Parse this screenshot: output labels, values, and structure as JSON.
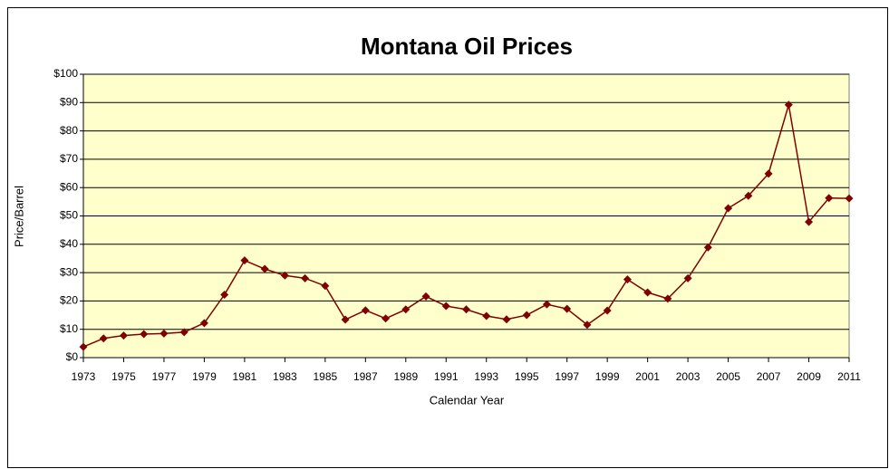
{
  "chart_data": {
    "type": "line",
    "title": "Montana Oil Prices",
    "x_label": "Calendar Year",
    "y_label": "Price/Barrel",
    "x": [
      1973,
      1974,
      1975,
      1976,
      1977,
      1978,
      1979,
      1980,
      1981,
      1982,
      1983,
      1984,
      1985,
      1986,
      1987,
      1988,
      1989,
      1990,
      1991,
      1992,
      1993,
      1994,
      1995,
      1996,
      1997,
      1998,
      1999,
      2000,
      2001,
      2002,
      2003,
      2004,
      2005,
      2006,
      2007,
      2008,
      2009,
      2010,
      2011
    ],
    "series": [
      {
        "name": "Price/Barrel",
        "color": "#800000",
        "values": [
          3.8,
          6.8,
          7.8,
          8.3,
          8.5,
          9.0,
          12.2,
          22.2,
          34.3,
          31.3,
          29.0,
          28.0,
          25.3,
          13.4,
          16.7,
          13.8,
          17.0,
          21.6,
          18.2,
          17.0,
          14.7,
          13.5,
          15.0,
          18.8,
          17.2,
          11.6,
          16.6,
          27.6,
          23.0,
          20.8,
          28.0,
          38.9,
          52.7,
          57.1,
          64.9,
          89.2,
          47.9,
          56.3,
          56.2
        ]
      }
    ],
    "xlim": [
      1973,
      2011
    ],
    "xticks": [
      1973,
      1975,
      1977,
      1979,
      1981,
      1983,
      1985,
      1987,
      1989,
      1991,
      1993,
      1995,
      1997,
      1999,
      2001,
      2003,
      2005,
      2007,
      2009,
      2011
    ],
    "ylim": [
      0,
      100
    ],
    "yticks": [
      {
        "value": 0,
        "label": "$0"
      },
      {
        "value": 10,
        "label": "$10"
      },
      {
        "value": 20,
        "label": "$20"
      },
      {
        "value": 30,
        "label": "$30"
      },
      {
        "value": 40,
        "label": "$40"
      },
      {
        "value": 50,
        "label": "$50"
      },
      {
        "value": 60,
        "label": "$60"
      },
      {
        "value": 70,
        "label": "$70"
      },
      {
        "value": 80,
        "label": "$80"
      },
      {
        "value": 90,
        "label": "$90"
      },
      {
        "value": 100,
        "label": "$100"
      }
    ],
    "grid": true,
    "plot_background": "#ffffcc"
  }
}
